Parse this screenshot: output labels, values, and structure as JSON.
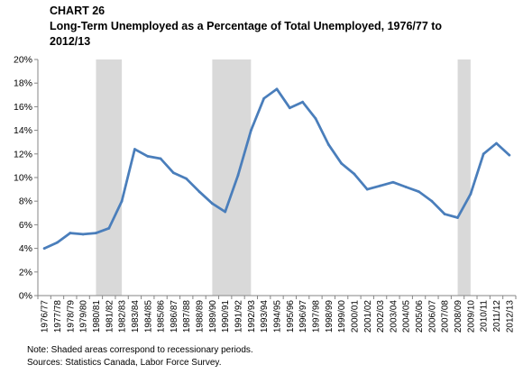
{
  "header": {
    "chart_number": "CHART 26",
    "title": "Long-Term Unemployed as a Percentage of Total Unemployed, 1976/77 to 2012/13"
  },
  "footnotes": {
    "note": "Note: Shaded areas correspond to recessionary periods.",
    "source": "Sources: Statistics Canada, Labor Force Survey."
  },
  "colors": {
    "line": "#4a7ebb",
    "recession": "#d9d9d9",
    "axis": "#868686"
  },
  "chart_data": {
    "type": "line",
    "title": "Long-Term Unemployed as a Percentage of Total Unemployed, 1976/77 to 2012/13",
    "xlabel": "",
    "ylabel": "",
    "ylim": [
      0,
      20
    ],
    "y_ticks": [
      "0%",
      "2%",
      "4%",
      "6%",
      "8%",
      "10%",
      "12%",
      "14%",
      "16%",
      "18%",
      "20%"
    ],
    "grid": false,
    "legend": "none",
    "categories": [
      "1976/77",
      "1977/78",
      "1978/79",
      "1979/80",
      "1980/81",
      "1981/82",
      "1982/83",
      "1983/84",
      "1984/85",
      "1985/86",
      "1986/87",
      "1987/88",
      "1988/89",
      "1989/90",
      "1990/91",
      "1991/92",
      "1992/93",
      "1993/94",
      "1994/95",
      "1995/96",
      "1996/97",
      "1997/98",
      "1998/99",
      "1999/00",
      "2000/01",
      "2001/02",
      "2002/03",
      "2003/04",
      "2004/05",
      "2005/06",
      "2006/07",
      "2007/08",
      "2008/09",
      "2009/10",
      "2010/11",
      "2011/12",
      "2012/13"
    ],
    "values": [
      4.0,
      4.5,
      5.3,
      5.2,
      5.3,
      5.7,
      8.0,
      12.4,
      11.8,
      11.6,
      10.4,
      9.9,
      8.8,
      7.8,
      7.1,
      10.2,
      14.0,
      16.7,
      17.5,
      15.9,
      16.4,
      15.0,
      12.8,
      11.2,
      10.3,
      9.0,
      9.3,
      9.6,
      9.2,
      8.8,
      8.0,
      6.9,
      6.6,
      8.6,
      12.0,
      12.9,
      11.9
    ],
    "recession_periods": [
      [
        "1980/81",
        "1982/83"
      ],
      [
        "1989/90",
        "1992/93"
      ],
      [
        "2008/09",
        "2009/10"
      ]
    ]
  }
}
